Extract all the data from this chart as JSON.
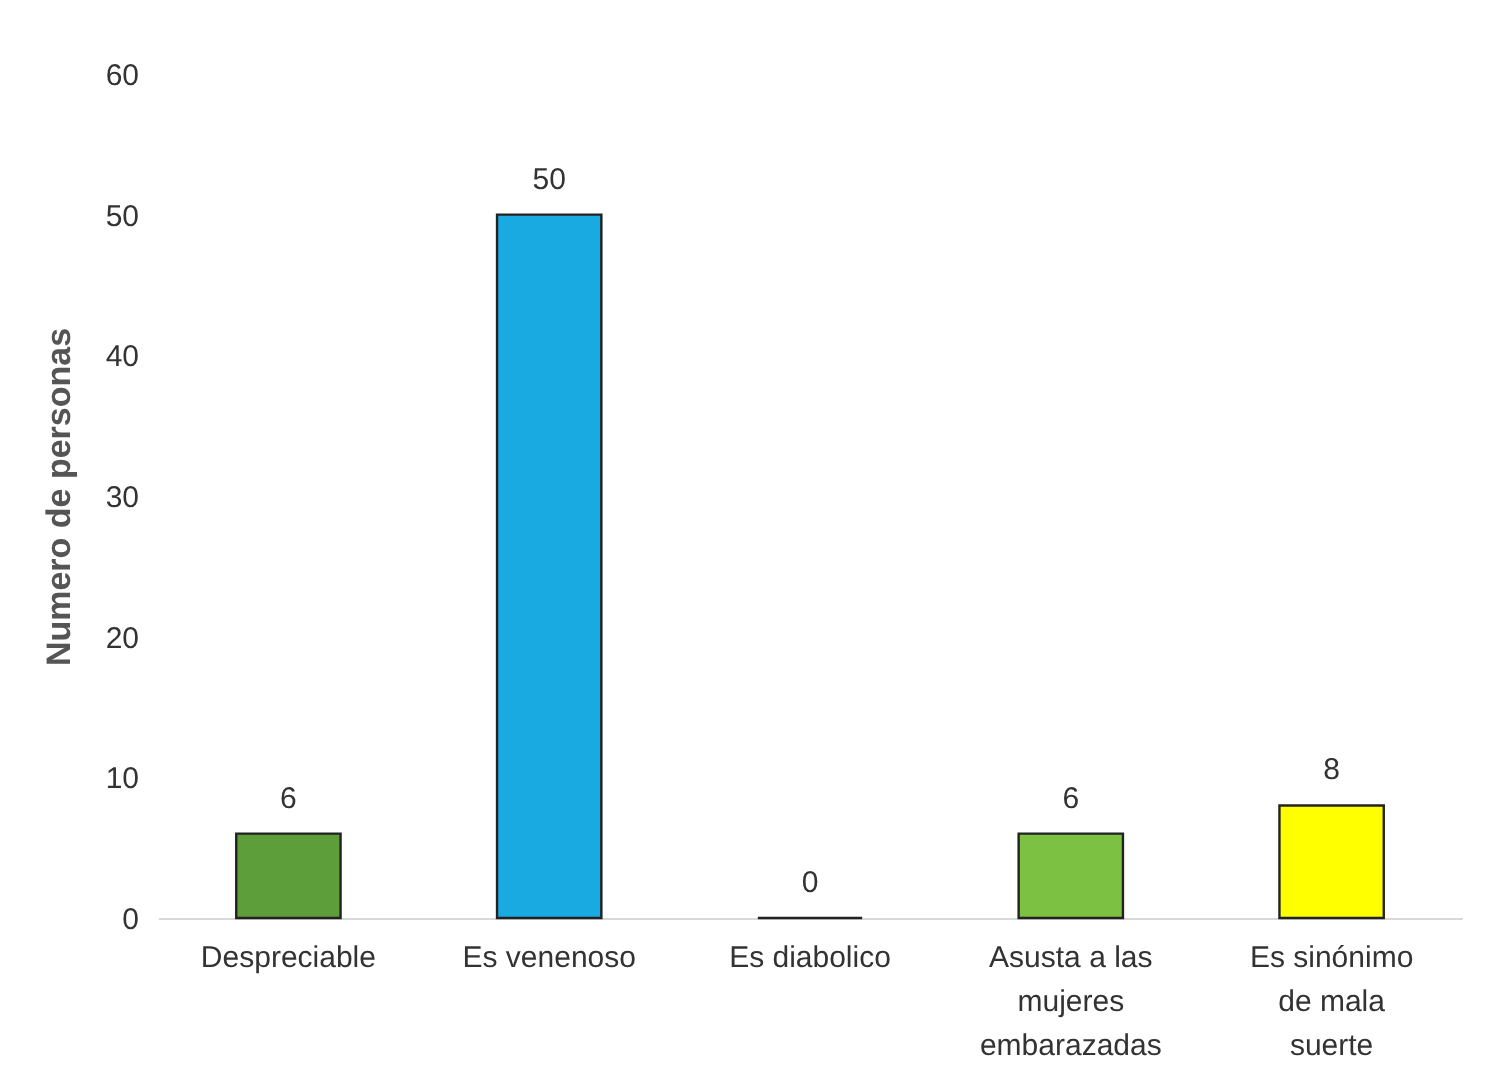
{
  "chart_data": {
    "type": "bar",
    "ylabel": "Numero de personas",
    "categories": [
      "Despreciable",
      "Es venenoso",
      "Es diabolico",
      "Asusta  a las mujeres embarazadas",
      "Es sinónimo de mala suerte"
    ],
    "values": [
      6,
      50,
      0,
      6,
      8
    ],
    "colors": [
      "#5e9e3a",
      "#1aaae2",
      "#222222",
      "#7dc142",
      "#ffff00"
    ],
    "ylim": [
      0,
      60
    ],
    "yticks": [
      0,
      10,
      20,
      30,
      40,
      50,
      60
    ],
    "grid": false,
    "data_labels": true
  }
}
